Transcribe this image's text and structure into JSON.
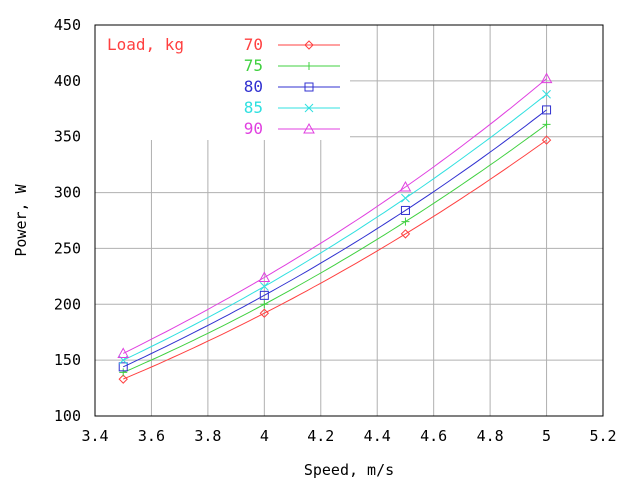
{
  "chart_data": {
    "type": "line",
    "xlabel": "Speed, m/s",
    "ylabel": "Power, W",
    "xlim": [
      3.4,
      5.2
    ],
    "ylim": [
      100,
      450
    ],
    "x_ticks": [
      "3.4",
      "3.6",
      "3.8",
      "4",
      "4.2",
      "4.4",
      "4.6",
      "4.8",
      "5",
      "5.2"
    ],
    "y_ticks": [
      "100",
      "150",
      "200",
      "250",
      "300",
      "350",
      "400",
      "450"
    ],
    "grid": true,
    "legend": {
      "title": "Load, kg",
      "placement": "top-left"
    },
    "x": [
      3.5,
      4.0,
      4.5,
      5.0
    ],
    "series": [
      {
        "name": "70",
        "color": "#ff4040",
        "marker": "diamond",
        "values": [
          133,
          192,
          263,
          347
        ]
      },
      {
        "name": "75",
        "color": "#40d040",
        "marker": "plus",
        "values": [
          139,
          200,
          274,
          361
        ]
      },
      {
        "name": "80",
        "color": "#3030d0",
        "marker": "square",
        "values": [
          144,
          208,
          284,
          374
        ]
      },
      {
        "name": "85",
        "color": "#30e0e0",
        "marker": "cross",
        "values": [
          150,
          216,
          295,
          388
        ]
      },
      {
        "name": "90",
        "color": "#e040e0",
        "marker": "triangle",
        "values": [
          156,
          224,
          305,
          402
        ]
      }
    ]
  }
}
